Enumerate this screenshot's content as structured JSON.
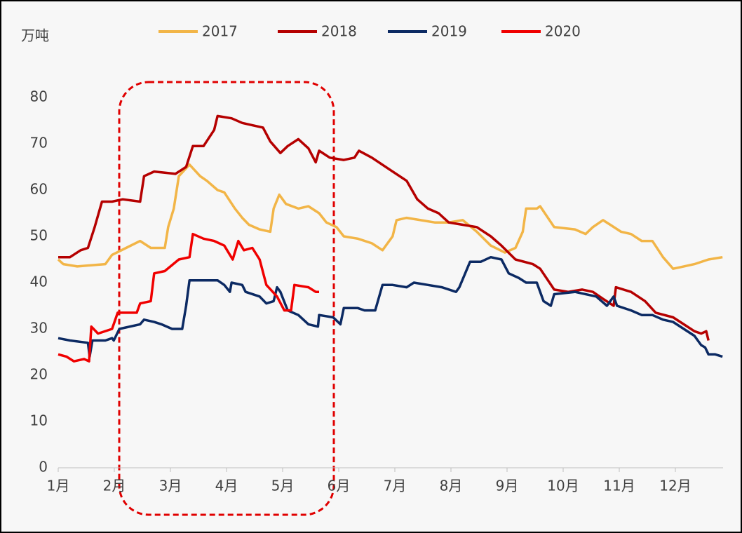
{
  "chart_data": {
    "type": "line",
    "y_label": "万吨",
    "xlim": [
      0,
      11.85
    ],
    "xticks": [
      {
        "value": 0,
        "label": "1月"
      },
      {
        "value": 1,
        "label": "2月"
      },
      {
        "value": 2,
        "label": "3月"
      },
      {
        "value": 3,
        "label": "4月"
      },
      {
        "value": 4,
        "label": "5月"
      },
      {
        "value": 5,
        "label": "6月"
      },
      {
        "value": 6,
        "label": "7月"
      },
      {
        "value": 7,
        "label": "8月"
      },
      {
        "value": 8,
        "label": "9月"
      },
      {
        "value": 9,
        "label": "10月"
      },
      {
        "value": 10,
        "label": "11月"
      },
      {
        "value": 11,
        "label": "12月"
      }
    ],
    "ylim": [
      0,
      80
    ],
    "yticks": [
      0,
      10,
      20,
      30,
      40,
      50,
      60,
      70,
      80
    ],
    "grid": false,
    "legend": "top",
    "series": [
      {
        "name": "2017",
        "color": "#f2b547",
        "x": [
          0,
          0.09,
          0.34,
          0.84,
          0.96,
          1.21,
          1.46,
          1.65,
          1.9,
          1.96,
          2.06,
          2.15,
          2.34,
          2.53,
          2.65,
          2.84,
          2.96,
          3.15,
          3.28,
          3.4,
          3.59,
          3.78,
          3.84,
          3.94,
          4.06,
          4.28,
          4.46,
          4.65,
          4.78,
          4.96,
          5.09,
          5.34,
          5.59,
          5.78,
          5.96,
          6.03,
          6.21,
          6.46,
          6.71,
          6.96,
          7.21,
          7.46,
          7.71,
          7.96,
          8.15,
          8.28,
          8.34,
          8.53,
          8.59,
          8.84,
          9.21,
          9.4,
          9.53,
          9.71,
          9.84,
          10.03,
          10.21,
          10.4,
          10.59,
          10.78,
          10.96,
          11.15,
          11.34,
          11.59,
          11.84
        ],
        "values": [
          45,
          44,
          43.5,
          44,
          46,
          47.5,
          49,
          47.5,
          47.5,
          52,
          56,
          63,
          65.5,
          63,
          62,
          60,
          59.5,
          56,
          54,
          52.5,
          51.5,
          51,
          56,
          59,
          57,
          56,
          56.5,
          55,
          53,
          52,
          50,
          49.5,
          48.5,
          47,
          50,
          53.5,
          54,
          53.5,
          53,
          53,
          53.5,
          51,
          48,
          46.5,
          47.5,
          51,
          56,
          56,
          56.5,
          52,
          51.5,
          50.5,
          52,
          53.5,
          52.5,
          51,
          50.5,
          49,
          49,
          45.5,
          43,
          43.5,
          44,
          45,
          45.5
        ]
      },
      {
        "name": "2018",
        "color": "#b50000",
        "x": [
          0,
          0.21,
          0.4,
          0.53,
          0.65,
          0.78,
          0.96,
          1.15,
          1.46,
          1.53,
          1.71,
          2.09,
          2.28,
          2.4,
          2.59,
          2.78,
          2.84,
          3.09,
          3.28,
          3.46,
          3.65,
          3.78,
          3.96,
          4.09,
          4.28,
          4.46,
          4.59,
          4.65,
          4.84,
          5.09,
          5.28,
          5.36,
          5.59,
          5.96,
          6.21,
          6.4,
          6.59,
          6.78,
          6.96,
          7.21,
          7.46,
          7.71,
          7.9,
          8.15,
          8.46,
          8.59,
          8.84,
          9.09,
          9.34,
          9.53,
          9.71,
          9.9,
          9.94,
          10.21,
          10.46,
          10.65,
          10.96,
          11.15,
          11.34,
          11.46,
          11.55,
          11.59
        ],
        "values": [
          45.5,
          45.5,
          47,
          47.5,
          52,
          57.5,
          57.5,
          58,
          57.5,
          63,
          64,
          63.5,
          65,
          69.5,
          69.5,
          73,
          76,
          75.5,
          74.5,
          74,
          73.5,
          70.5,
          68,
          69.5,
          71,
          69,
          66,
          68.5,
          67,
          66.5,
          67,
          68.5,
          67,
          64,
          62,
          58,
          56,
          55,
          53,
          52.5,
          52,
          50,
          48,
          45,
          44,
          43,
          38.5,
          38,
          38.5,
          38,
          36.5,
          35,
          39,
          38,
          36,
          33.5,
          32.5,
          31,
          29.5,
          29,
          29.5,
          27.5
        ]
      },
      {
        "name": "2019",
        "color": "#0c2a63",
        "x": [
          0,
          0.21,
          0.53,
          0.56,
          0.61,
          0.84,
          0.96,
          0.99,
          1.09,
          1.46,
          1.53,
          1.71,
          1.84,
          2.03,
          2.21,
          2.28,
          2.34,
          2.59,
          2.84,
          2.96,
          3.06,
          3.09,
          3.28,
          3.34,
          3.59,
          3.71,
          3.84,
          3.9,
          3.96,
          4.09,
          4.28,
          4.46,
          4.63,
          4.65,
          4.9,
          5.03,
          5.09,
          5.34,
          5.46,
          5.65,
          5.78,
          5.96,
          6.21,
          6.34,
          6.59,
          6.84,
          7.09,
          7.15,
          7.34,
          7.53,
          7.71,
          7.9,
          8.03,
          8.21,
          8.34,
          8.53,
          8.65,
          8.78,
          8.84,
          9.21,
          9.59,
          9.78,
          9.9,
          9.96,
          10.21,
          10.4,
          10.59,
          10.78,
          10.96,
          11.15,
          11.34,
          11.46,
          11.53,
          11.59,
          11.71,
          11.84
        ],
        "values": [
          28,
          27.5,
          27,
          24,
          27.5,
          27.5,
          28,
          27.5,
          30,
          31,
          32,
          31.5,
          31,
          30,
          30,
          35,
          40.5,
          40.5,
          40.5,
          39.5,
          38,
          40,
          39.5,
          38,
          37,
          35.5,
          36,
          39,
          38,
          34,
          33,
          31,
          30.5,
          33,
          32.5,
          31,
          34.5,
          34.5,
          34,
          34,
          39.5,
          39.5,
          39,
          40,
          39.5,
          39,
          38,
          39,
          44.5,
          44.5,
          45.5,
          45,
          42,
          41,
          40,
          40,
          36,
          35,
          37.5,
          38,
          37,
          35,
          37,
          35,
          34,
          33,
          33,
          32,
          31.5,
          30,
          28.5,
          26.5,
          26,
          24.5,
          24.5,
          24
        ]
      },
      {
        "name": "2020",
        "color": "#f00000",
        "x": [
          0,
          0.15,
          0.28,
          0.46,
          0.55,
          0.59,
          0.71,
          0.96,
          1.06,
          1.4,
          1.46,
          1.65,
          1.71,
          1.9,
          2.15,
          2.34,
          2.4,
          2.59,
          2.78,
          2.96,
          3.11,
          3.21,
          3.31,
          3.46,
          3.59,
          3.71,
          3.9,
          4.03,
          4.15,
          4.21,
          4.46,
          4.59,
          4.65
        ],
        "values": [
          24.5,
          24,
          23,
          23.5,
          23,
          30.5,
          29,
          30,
          33.5,
          33.5,
          35.5,
          36,
          42,
          42.5,
          45,
          45.5,
          50.5,
          49.5,
          49,
          48,
          45,
          49,
          47,
          47.5,
          45,
          39.5,
          37,
          34,
          34,
          39.5,
          39,
          38,
          38
        ]
      }
    ]
  }
}
